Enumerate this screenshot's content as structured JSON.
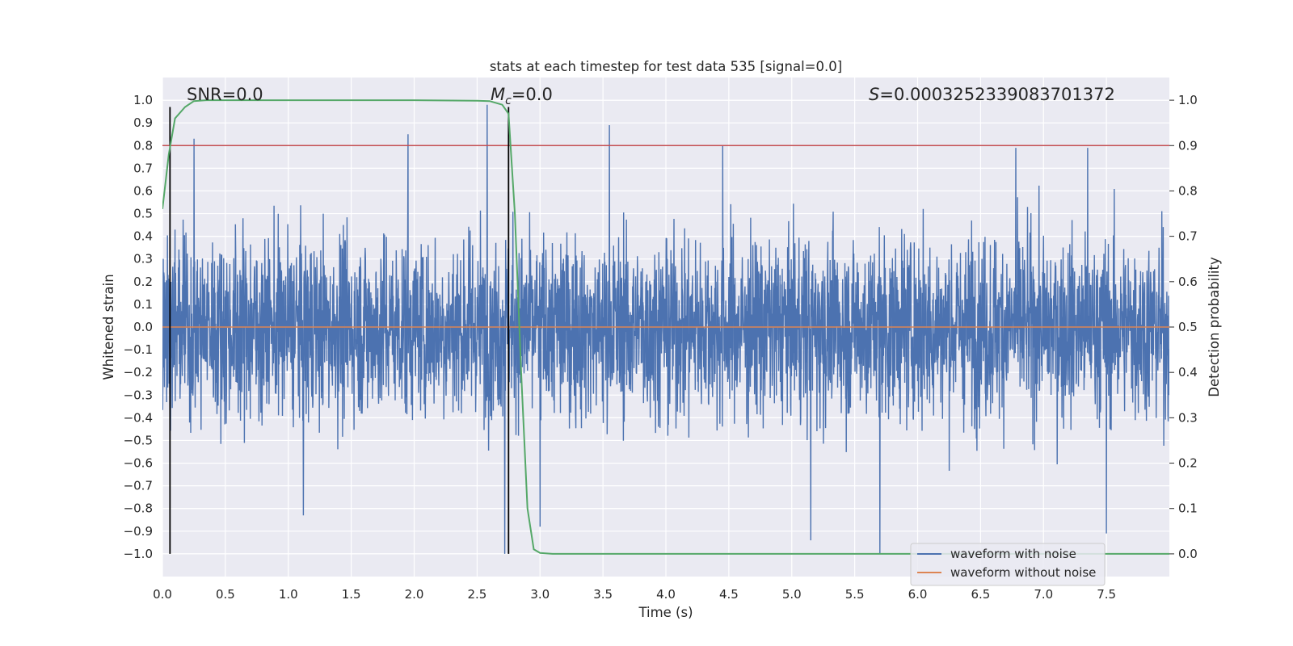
{
  "chart_data": {
    "type": "line",
    "title": "stats at each timestep for test data 535 [signal=0.0]",
    "xlabel": "Time (s)",
    "ylabel_left": "Whitened strain",
    "ylabel_right": "Detection probability",
    "xlim": [
      0.0,
      8.0
    ],
    "ylim_left": [
      -1.1,
      1.1
    ],
    "ylim_right": [
      -0.05,
      1.05
    ],
    "grid": true,
    "x_ticks": [
      "0.0",
      "0.5",
      "1.0",
      "1.5",
      "2.0",
      "2.5",
      "3.0",
      "3.5",
      "4.0",
      "4.5",
      "5.0",
      "5.5",
      "6.0",
      "6.5",
      "7.0",
      "7.5"
    ],
    "y_left_ticks": [
      "1.0",
      "0.9",
      "0.8",
      "0.7",
      "0.6",
      "0.5",
      "0.4",
      "0.3",
      "0.2",
      "0.1",
      "0.0",
      "−0.1",
      "−0.2",
      "−0.3",
      "−0.4",
      "−0.5",
      "−0.6",
      "−0.7",
      "−0.8",
      "−0.9",
      "−1.0"
    ],
    "y_right_ticks": [
      "1.0",
      "0.9",
      "0.8",
      "0.7",
      "0.6",
      "0.5",
      "0.4",
      "0.3",
      "0.2",
      "0.1",
      "0.0"
    ],
    "annotations": {
      "snr": "SNR=0.0",
      "mc_symbol": "M",
      "mc_sub": "c",
      "mc_value": "=0.0",
      "s_symbol": "S",
      "s_value": "=0.0003252339083701372"
    },
    "vertical_lines_x": [
      0.06,
      2.75
    ],
    "threshold_right": 0.9,
    "series": [
      {
        "name": "waveform with noise",
        "axis": "left",
        "color": "#4c72b0",
        "description": "dense noise time series between about -1.0 and 0.98",
        "envelope": {
          "upper_typical": 0.5,
          "lower_typical": -0.55,
          "peaks": [
            [
              0.25,
              0.83
            ],
            [
              1.95,
              0.85
            ],
            [
              2.58,
              0.98
            ],
            [
              3.55,
              0.89
            ],
            [
              4.45,
              0.8
            ],
            [
              6.78,
              0.79
            ],
            [
              7.35,
              0.79
            ]
          ],
          "troughs": [
            [
              1.12,
              -0.83
            ],
            [
              2.72,
              -1.0
            ],
            [
              3.0,
              -0.88
            ],
            [
              5.15,
              -0.94
            ],
            [
              5.7,
              -1.0
            ],
            [
              7.5,
              -0.91
            ]
          ]
        }
      },
      {
        "name": "waveform without noise",
        "axis": "left",
        "color": "#dd8452",
        "x": [
          0.0,
          8.0
        ],
        "y": [
          0.0,
          0.0
        ]
      },
      {
        "name": "detection probability",
        "axis": "right",
        "color": "#55a868",
        "x": [
          0.0,
          0.05,
          0.1,
          0.18,
          0.25,
          0.35,
          0.5,
          1.0,
          2.0,
          2.5,
          2.6,
          2.7,
          2.75,
          2.8,
          2.85,
          2.9,
          2.95,
          3.0,
          3.1,
          8.0
        ],
        "y": [
          0.76,
          0.88,
          0.96,
          0.985,
          0.998,
          1.0,
          1.0,
          1.0,
          1.0,
          0.999,
          0.998,
          0.99,
          0.97,
          0.75,
          0.4,
          0.1,
          0.01,
          0.002,
          0.0,
          0.0
        ]
      },
      {
        "name": "threshold",
        "axis": "right",
        "color": "#c44e52",
        "x": [
          0.0,
          8.0
        ],
        "y": [
          0.9,
          0.9
        ]
      }
    ],
    "legend": {
      "placement": "bottom-right",
      "entries": [
        {
          "label": "waveform with noise",
          "color": "#4c72b0"
        },
        {
          "label": "waveform without noise",
          "color": "#dd8452"
        }
      ]
    }
  }
}
